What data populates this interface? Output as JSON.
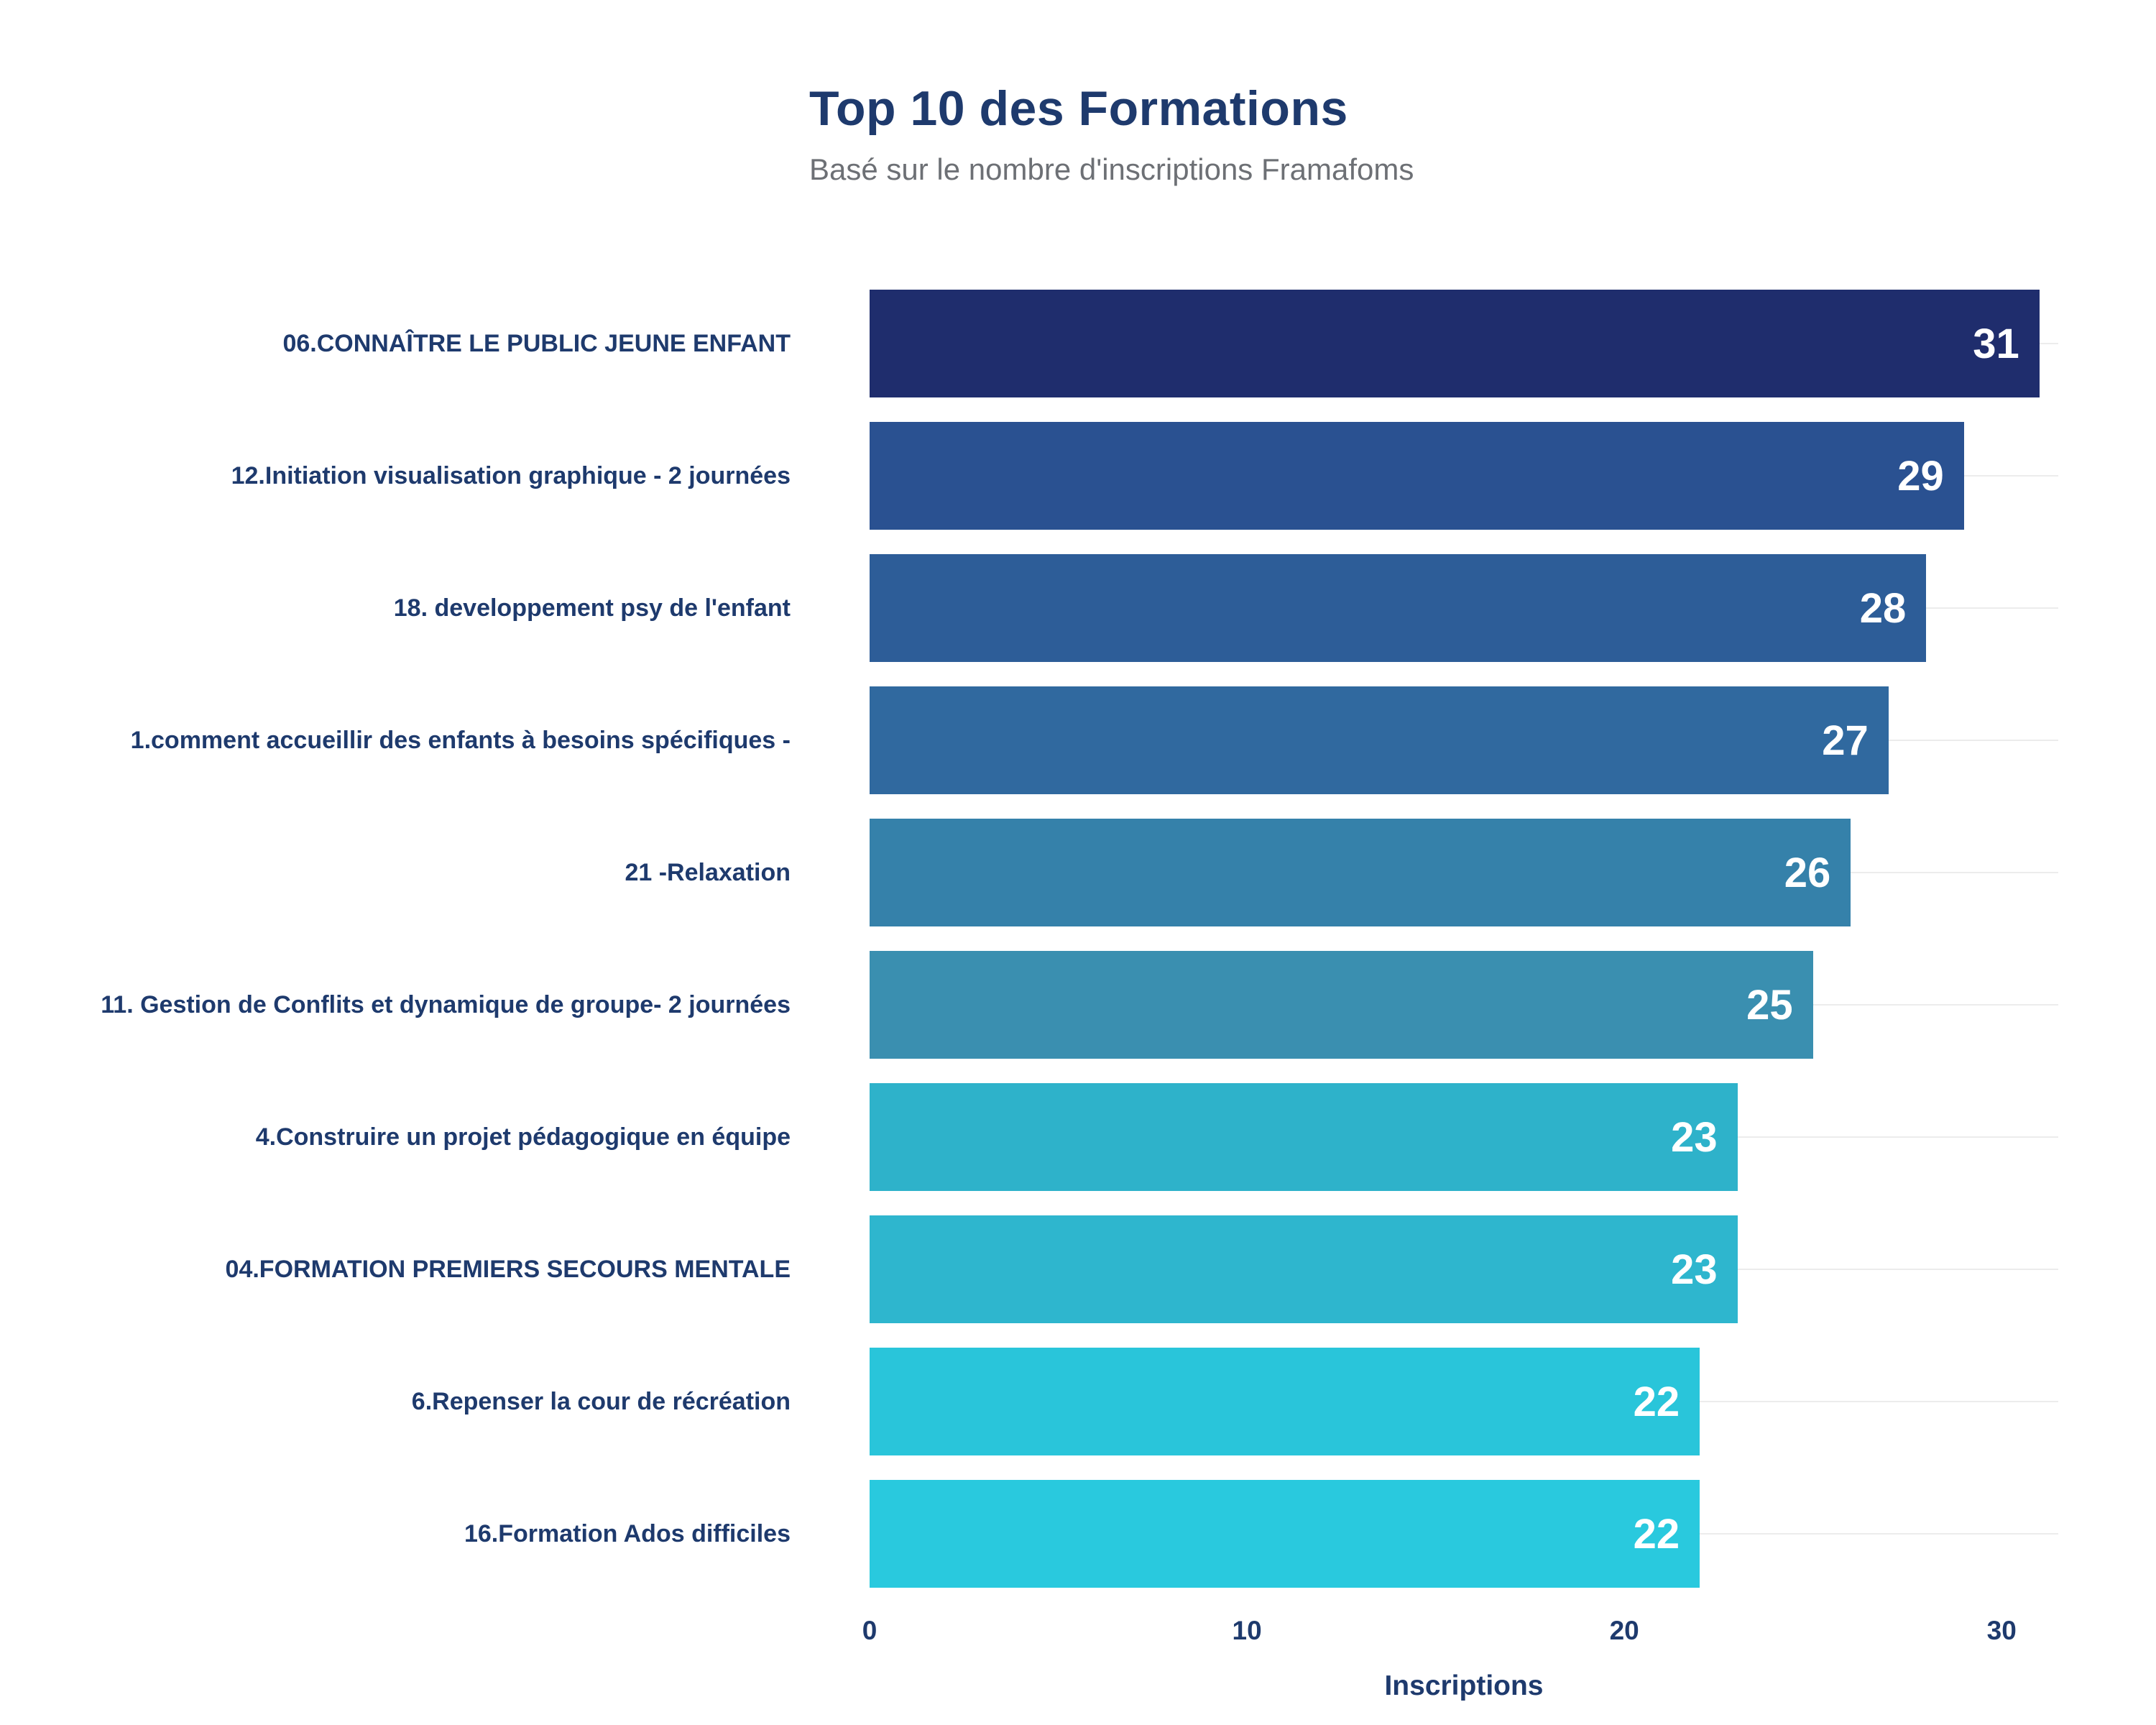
{
  "chart_data": {
    "type": "bar",
    "orientation": "horizontal",
    "title": "Top 10 des Formations",
    "subtitle": "Basé sur le nombre d'inscriptions Framafoms",
    "xlabel": "Inscriptions",
    "categories": [
      "06.CONNAÎTRE LE PUBLIC JEUNE ENFANT",
      "12.Initiation visualisation graphique - 2 journées",
      "18. developpement psy de l'enfant",
      "1.comment accueillir des enfants à besoins spécifiques -",
      "21 -Relaxation",
      "11. Gestion de Conflits et dynamique de groupe- 2 journées",
      "4.Construire un projet pédagogique en équipe",
      "04.FORMATION PREMIERS SECOURS MENTALE",
      "6.Repenser la cour de récréation",
      "16.Formation Ados difficiles"
    ],
    "values": [
      31,
      29,
      28,
      27,
      26,
      25,
      23,
      23,
      22,
      22
    ],
    "bar_colors": [
      "#1f2d6d",
      "#2a5191",
      "#2d5d98",
      "#30699f",
      "#3581aa",
      "#3a8fb0",
      "#2eb2ca",
      "#2eb6ce",
      "#29c5da",
      "#29c9de"
    ],
    "value_label_color": "#ffffff",
    "text_color": "#1e3a6d",
    "subtitle_color": "#6d7075",
    "x_ticks": [
      0,
      10,
      20,
      30
    ],
    "xlim": [
      0,
      31.5
    ],
    "grid": "faint horizontal line per category row",
    "legend": "none"
  }
}
